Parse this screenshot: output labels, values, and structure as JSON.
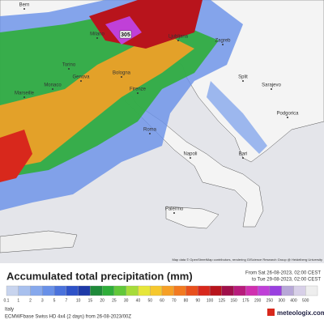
{
  "map": {
    "max_value": 305,
    "credit": "Map data © OpenStreetMap contributors, rendering GIScience Research Group @ Heidelberg University",
    "cities": [
      {
        "name": "Bern",
        "pos": "nw"
      },
      {
        "name": "Milano",
        "pos": "n"
      },
      {
        "name": "Torino",
        "pos": "n"
      },
      {
        "name": "Genova",
        "pos": "n"
      },
      {
        "name": "Monaco",
        "pos": "w"
      },
      {
        "name": "Marseille",
        "pos": "w"
      },
      {
        "name": "Bologna",
        "pos": "c"
      },
      {
        "name": "Firenze",
        "pos": "c"
      },
      {
        "name": "Roma",
        "pos": "c"
      },
      {
        "name": "Napoli",
        "pos": "s"
      },
      {
        "name": "Bari",
        "pos": "s"
      },
      {
        "name": "Palermo",
        "pos": "s"
      },
      {
        "name": "Ljubljana",
        "pos": "e"
      },
      {
        "name": "Zagreb",
        "pos": "e"
      },
      {
        "name": "Split",
        "pos": "e"
      },
      {
        "name": "Sarajevo",
        "pos": "e"
      },
      {
        "name": "Podgorica",
        "pos": "e"
      }
    ]
  },
  "footer": {
    "title": "Accumulated total precipitation (mm)",
    "period_from": "From Sat 26-08-2023, 02:00 CEST",
    "period_to": "to Tue 29-08-2023, 02:00 CEST",
    "region": "Italy",
    "model": "ECMWFbase Swiss HD 4x4 (2 days) from 26-08-2023/00Z",
    "brand": "meteologix.com",
    "legend": [
      {
        "value": 0.1,
        "color": "#c8d4ee"
      },
      {
        "value": 1,
        "color": "#a8c0ee"
      },
      {
        "value": 2,
        "color": "#86a8ec"
      },
      {
        "value": 3,
        "color": "#6890e8"
      },
      {
        "value": 5,
        "color": "#4a72dc"
      },
      {
        "value": 7,
        "color": "#2e52c8"
      },
      {
        "value": 10,
        "color": "#1e3aa8"
      },
      {
        "value": 15,
        "color": "#1f8a3a"
      },
      {
        "value": 20,
        "color": "#2fae3a"
      },
      {
        "value": 25,
        "color": "#62c83a"
      },
      {
        "value": 30,
        "color": "#a6dc3a"
      },
      {
        "value": 40,
        "color": "#e6e63a"
      },
      {
        "value": 50,
        "color": "#f6c82e"
      },
      {
        "value": 60,
        "color": "#f6a026"
      },
      {
        "value": 70,
        "color": "#f27a20"
      },
      {
        "value": 80,
        "color": "#e8501c"
      },
      {
        "value": 90,
        "color": "#d8281c"
      },
      {
        "value": 100,
        "color": "#b8141c"
      },
      {
        "value": 125,
        "color": "#a0104a"
      },
      {
        "value": 150,
        "color": "#b81c7c"
      },
      {
        "value": 175,
        "color": "#d030b0"
      },
      {
        "value": 200,
        "color": "#c040d8"
      },
      {
        "value": 250,
        "color": "#9a40e0"
      },
      {
        "value": 300,
        "color": "#b8a8d8"
      },
      {
        "value": 400,
        "color": "#d8d0e8"
      },
      {
        "value": 500,
        "color": "#eeeeee"
      }
    ]
  }
}
